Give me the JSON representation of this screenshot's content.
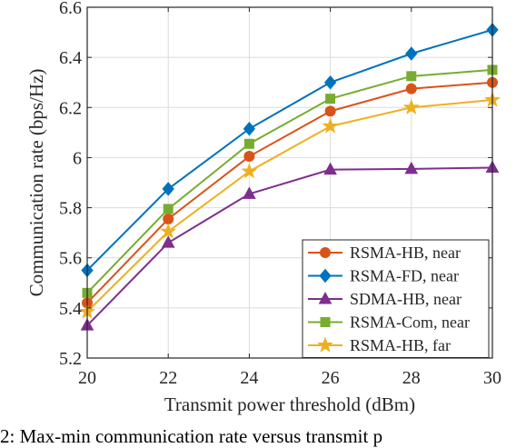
{
  "chart_data": {
    "type": "line",
    "title": "",
    "xlabel": "Transmit power threshold (dBm)",
    "ylabel": "Communication rate (bps/Hz)",
    "x": [
      20,
      22,
      24,
      26,
      28,
      30
    ],
    "xlim": [
      20,
      30
    ],
    "ylim": [
      5.2,
      6.6
    ],
    "x_ticks": [
      "20",
      "22",
      "24",
      "26",
      "28",
      "30"
    ],
    "y_ticks": [
      "5.2",
      "5.4",
      "5.6",
      "5.8",
      "6",
      "6.2",
      "6.4",
      "6.6"
    ],
    "grid": true,
    "legend_position": "bottom-right",
    "series": [
      {
        "name": "RSMA-HB, near",
        "color": "#D95319",
        "marker": "circle",
        "values": [
          5.42,
          5.755,
          6.005,
          6.185,
          6.275,
          6.3
        ]
      },
      {
        "name": "RSMA-FD, near",
        "color": "#0072BD",
        "marker": "diamond",
        "values": [
          5.55,
          5.875,
          6.115,
          6.3,
          6.415,
          6.51
        ]
      },
      {
        "name": "SDMA-HB, near",
        "color": "#7E2F8E",
        "marker": "triangle",
        "values": [
          5.33,
          5.66,
          5.855,
          5.952,
          5.955,
          5.96
        ]
      },
      {
        "name": "RSMA-Com, near",
        "color": "#77AC30",
        "marker": "square",
        "values": [
          5.46,
          5.795,
          6.055,
          6.235,
          6.325,
          6.35
        ]
      },
      {
        "name": "RSMA-HB, far",
        "color": "#EDB120",
        "marker": "star",
        "values": [
          5.385,
          5.705,
          5.945,
          6.125,
          6.2,
          6.23
        ]
      }
    ]
  },
  "caption": {
    "text": "2: Max-min communication rate versus transmit p"
  }
}
